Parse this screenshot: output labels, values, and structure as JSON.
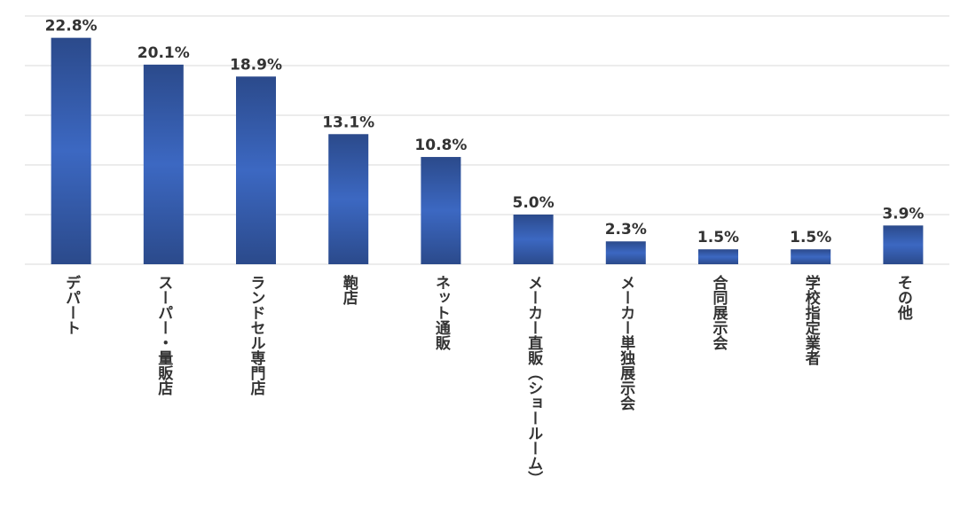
{
  "colors": {
    "bar_dark": "#2B4A8B",
    "bar_light": "#3C68C2",
    "grid": "#d9d9d9",
    "text": "#333333"
  },
  "chart_data": {
    "type": "bar",
    "categories": [
      "デパート",
      "スーパー・量販店",
      "ランドセル専門店",
      "鞄店",
      "ネット通販",
      "メーカー直販（ショールーム）",
      "メーカー単独展示会",
      "合同展示会",
      "学校指定業者",
      "その他"
    ],
    "values": [
      22.8,
      20.1,
      18.9,
      13.1,
      10.8,
      5.0,
      2.3,
      1.5,
      1.5,
      3.9
    ],
    "value_labels": [
      "22.8%",
      "20.1%",
      "18.9%",
      "13.1%",
      "10.8%",
      "5.0%",
      "2.3%",
      "1.5%",
      "1.5%",
      "3.9%"
    ],
    "unit": "%",
    "ylim": [
      0,
      25
    ],
    "grid": true,
    "gridline_step": 5,
    "orientation": "vertical",
    "category_label_orientation": "vertical"
  }
}
